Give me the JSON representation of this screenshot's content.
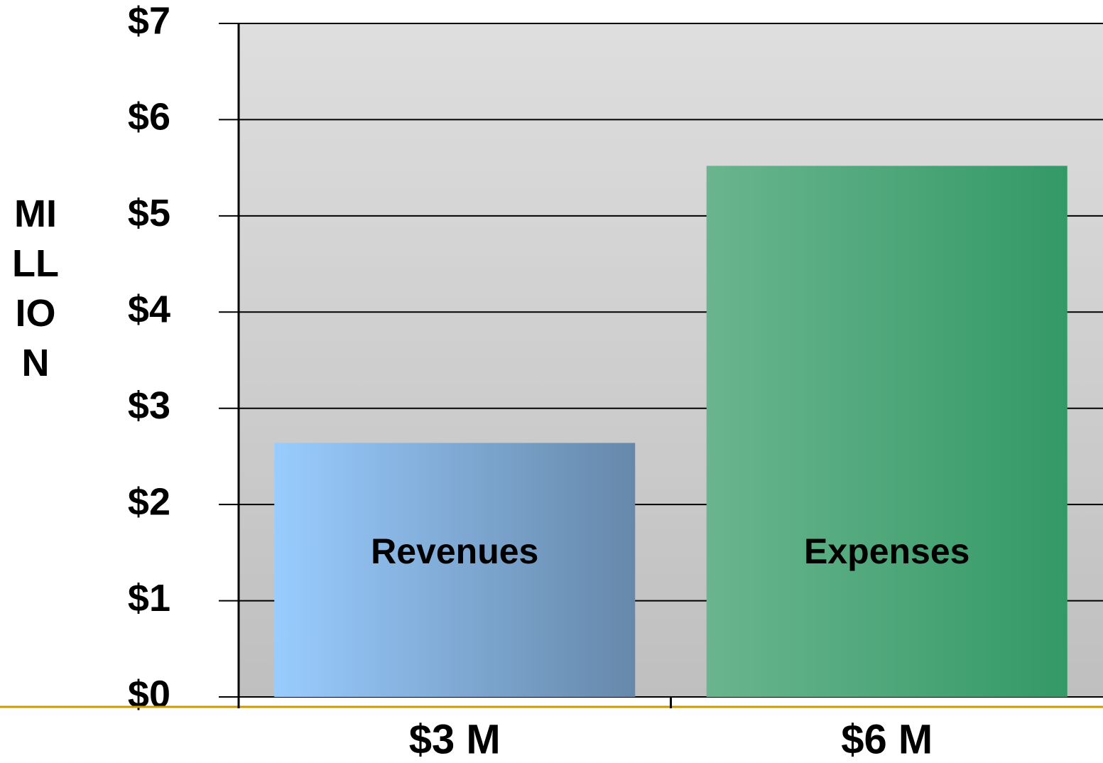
{
  "chart_data": {
    "type": "bar",
    "y_axis_label": "MILLION",
    "categories": [
      "$3 M",
      "$6 M"
    ],
    "bar_labels": [
      "Revenues",
      "Expenses"
    ],
    "values": [
      2.64,
      5.52
    ],
    "colors": [
      [
        "#99ccff",
        "#6688aa"
      ],
      [
        "#6ab58e",
        "#339966"
      ]
    ],
    "ylim": [
      0,
      7
    ],
    "yticks": [
      {
        "value": 0,
        "label": "$0"
      },
      {
        "value": 1,
        "label": "$1"
      },
      {
        "value": 2,
        "label": "$2"
      },
      {
        "value": 3,
        "label": "$3"
      },
      {
        "value": 4,
        "label": "$4"
      },
      {
        "value": 5,
        "label": "$5"
      },
      {
        "value": 6,
        "label": "$6"
      },
      {
        "value": 7,
        "label": "$7"
      }
    ],
    "grid": true
  }
}
